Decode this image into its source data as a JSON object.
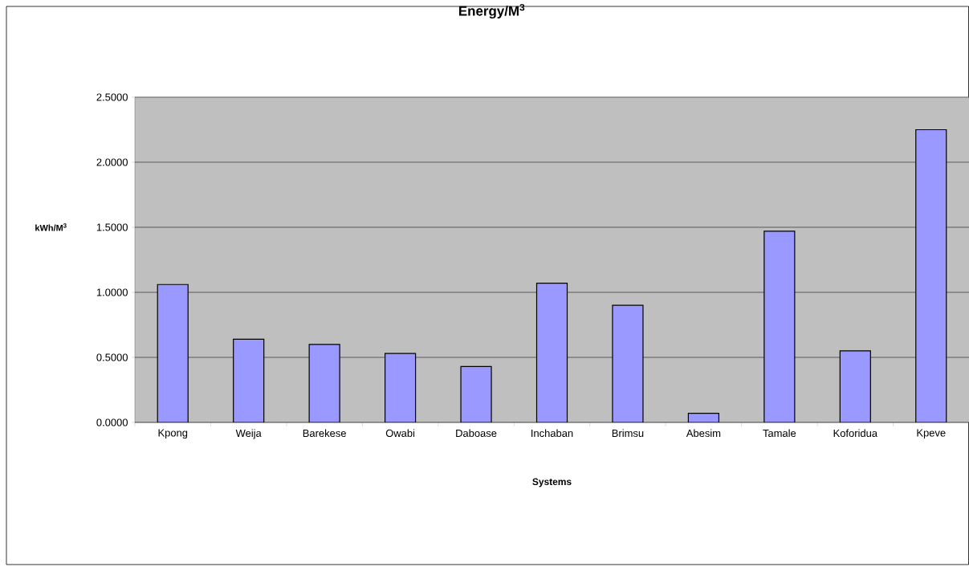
{
  "chart_data": {
    "type": "bar",
    "title": "Energy/M$^{3}$",
    "xlabel": "Systems",
    "ylabel": "kWh/M$^{3}$",
    "categories": [
      "Kpong",
      "Weija",
      "Barekese",
      "Owabi",
      "Daboase",
      "Inchaban",
      "Brimsu",
      "Abesim",
      "Tamale",
      "Koforidua",
      "Kpeve"
    ],
    "values": [
      1.06,
      0.64,
      0.6,
      0.53,
      0.43,
      1.07,
      0.9,
      0.07,
      1.47,
      0.55,
      2.25
    ],
    "color": "#9999ff",
    "ylim": [
      0,
      2.5
    ],
    "yticks": [
      {
        "value": 0,
        "label": "0.0000"
      },
      {
        "value": 0.5,
        "label": "0.5000"
      },
      {
        "value": 1,
        "label": "1.0000"
      },
      {
        "value": 1.5,
        "label": "1.5000"
      },
      {
        "value": 2,
        "label": "2.0000"
      },
      {
        "value": 2.5,
        "label": "2.5000"
      }
    ],
    "grid": "y"
  }
}
